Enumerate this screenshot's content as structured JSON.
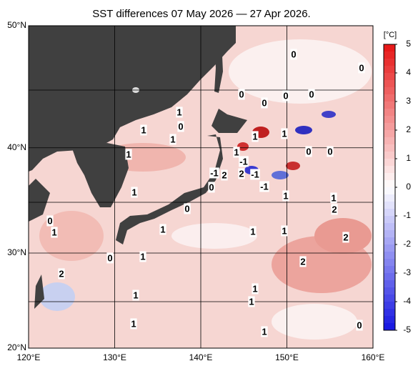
{
  "title": "SST differences 07 May 2026 — 27 Apr 2026.",
  "map": {
    "lon_ticks": [
      {
        "value": 120,
        "label": "120°E"
      },
      {
        "value": 130,
        "label": "130°E"
      },
      {
        "value": 140,
        "label": "140°E"
      },
      {
        "value": 150,
        "label": "150°E"
      },
      {
        "value": 160,
        "label": "160°E"
      }
    ],
    "lat_ticks": [
      {
        "value": 20,
        "label": "20°N"
      },
      {
        "value": 30,
        "label": "30°N"
      },
      {
        "value": 40,
        "label": "40°N"
      },
      {
        "value": 50,
        "label": "50°N"
      }
    ],
    "contour_labels": [
      "0",
      "0",
      "0",
      "0",
      "0",
      "0",
      "1",
      "1",
      "0",
      "1",
      "1",
      "1",
      "1",
      "1",
      "0",
      "0",
      "-1",
      "-1",
      "2",
      "2",
      "-1",
      "-1",
      "0",
      "1",
      "1",
      "1",
      "2",
      "0",
      "0",
      "1",
      "1",
      "1",
      "1",
      "2",
      "0",
      "1",
      "2",
      "2",
      "1",
      "1",
      "1",
      "1",
      "1",
      "0"
    ]
  },
  "colorbar": {
    "unit": "[°C]",
    "lim": [
      -5,
      5
    ],
    "ticks": [
      5,
      4,
      3,
      2,
      1,
      0,
      -1,
      -2,
      -3,
      -4,
      -5
    ]
  }
}
